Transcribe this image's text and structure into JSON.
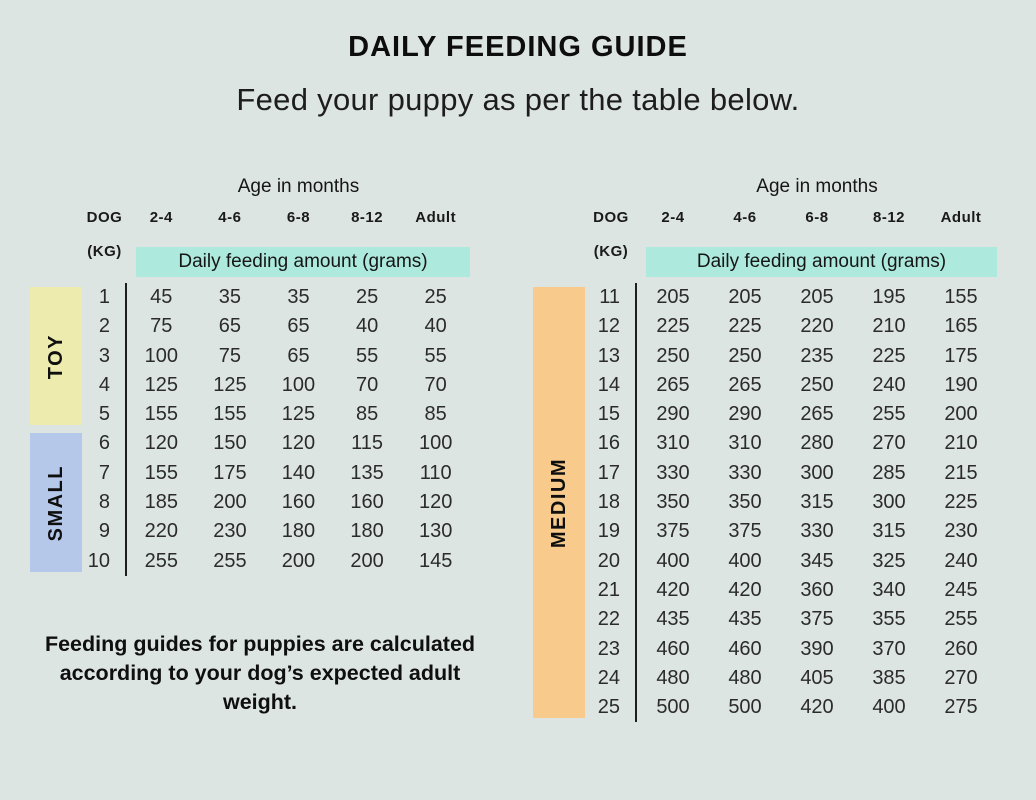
{
  "title": "DAILY FEEDING GUIDE",
  "subtitle": "Feed your puppy as per the table below.",
  "footnote": "Feeding guides for puppies are calculated according to your dog’s expected adult weight.",
  "colors": {
    "background": "#dde5e2",
    "highlight": "#ade9dc",
    "toy": "#edecae",
    "small": "#b6c8ea",
    "medium": "#f8cb8d",
    "text": "#1a1a1a"
  },
  "tables": [
    {
      "age_header": "Age in months",
      "dog_label": "DOG",
      "kg_label": "(KG)",
      "columns": [
        "2-4",
        "4-6",
        "6-8",
        "8-12",
        "Adult"
      ],
      "amount_label": "Daily feeding amount (grams)",
      "groups": [
        {
          "name": "TOY",
          "color_key": "toy",
          "rows": [
            {
              "kg": "1",
              "values": [
                "45",
                "35",
                "35",
                "25",
                "25"
              ]
            },
            {
              "kg": "2",
              "values": [
                "75",
                "65",
                "65",
                "40",
                "40"
              ]
            },
            {
              "kg": "3",
              "values": [
                "100",
                "75",
                "65",
                "55",
                "55"
              ]
            },
            {
              "kg": "4",
              "values": [
                "125",
                "125",
                "100",
                "70",
                "70"
              ]
            },
            {
              "kg": "5",
              "values": [
                "155",
                "155",
                "125",
                "85",
                "85"
              ]
            }
          ]
        },
        {
          "name": "SMALL",
          "color_key": "small",
          "rows": [
            {
              "kg": "6",
              "values": [
                "120",
                "150",
                "120",
                "115",
                "100"
              ]
            },
            {
              "kg": "7",
              "values": [
                "155",
                "175",
                "140",
                "135",
                "110"
              ]
            },
            {
              "kg": "8",
              "values": [
                "185",
                "200",
                "160",
                "160",
                "120"
              ]
            },
            {
              "kg": "9",
              "values": [
                "220",
                "230",
                "180",
                "180",
                "130"
              ]
            },
            {
              "kg": "10",
              "values": [
                "255",
                "255",
                "200",
                "200",
                "145"
              ]
            }
          ]
        }
      ]
    },
    {
      "age_header": "Age in months",
      "dog_label": "DOG",
      "kg_label": "(KG)",
      "columns": [
        "2-4",
        "4-6",
        "6-8",
        "8-12",
        "Adult"
      ],
      "amount_label": "Daily feeding amount (grams)",
      "groups": [
        {
          "name": "MEDIUM",
          "color_key": "medium",
          "rows": [
            {
              "kg": "11",
              "values": [
                "205",
                "205",
                "205",
                "195",
                "155"
              ]
            },
            {
              "kg": "12",
              "values": [
                "225",
                "225",
                "220",
                "210",
                "165"
              ]
            },
            {
              "kg": "13",
              "values": [
                "250",
                "250",
                "235",
                "225",
                "175"
              ]
            },
            {
              "kg": "14",
              "values": [
                "265",
                "265",
                "250",
                "240",
                "190"
              ]
            },
            {
              "kg": "15",
              "values": [
                "290",
                "290",
                "265",
                "255",
                "200"
              ]
            },
            {
              "kg": "16",
              "values": [
                "310",
                "310",
                "280",
                "270",
                "210"
              ]
            },
            {
              "kg": "17",
              "values": [
                "330",
                "330",
                "300",
                "285",
                "215"
              ]
            },
            {
              "kg": "18",
              "values": [
                "350",
                "350",
                "315",
                "300",
                "225"
              ]
            },
            {
              "kg": "19",
              "values": [
                "375",
                "375",
                "330",
                "315",
                "230"
              ]
            },
            {
              "kg": "20",
              "values": [
                "400",
                "400",
                "345",
                "325",
                "240"
              ]
            },
            {
              "kg": "21",
              "values": [
                "420",
                "420",
                "360",
                "340",
                "245"
              ]
            },
            {
              "kg": "22",
              "values": [
                "435",
                "435",
                "375",
                "355",
                "255"
              ]
            },
            {
              "kg": "23",
              "values": [
                "460",
                "460",
                "390",
                "370",
                "260"
              ]
            },
            {
              "kg": "24",
              "values": [
                "480",
                "480",
                "405",
                "385",
                "270"
              ]
            },
            {
              "kg": "25",
              "values": [
                "500",
                "500",
                "420",
                "400",
                "275"
              ]
            }
          ]
        }
      ]
    }
  ]
}
